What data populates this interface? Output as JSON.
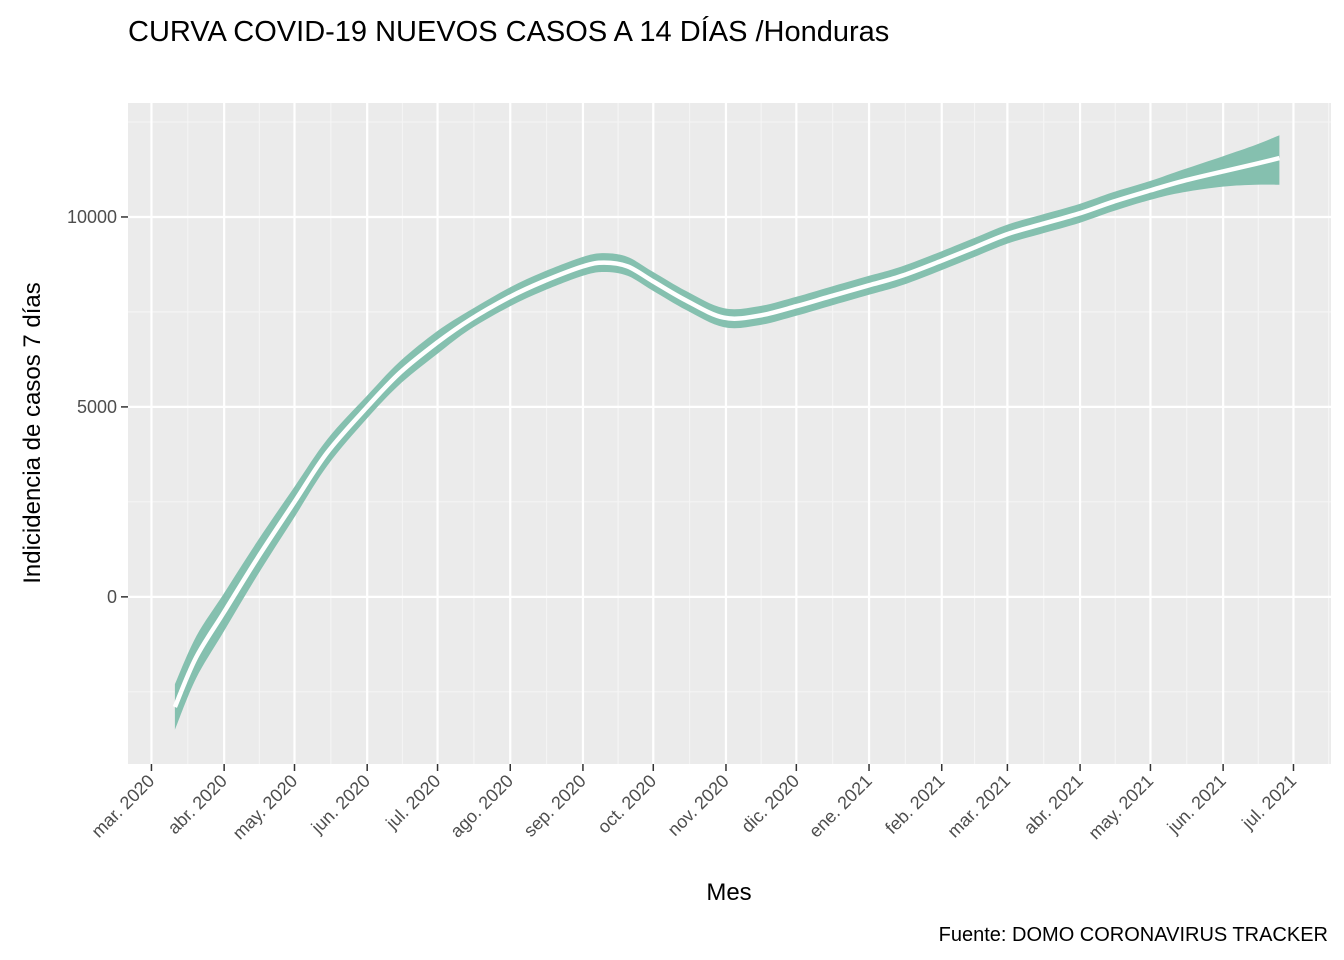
{
  "chart_data": {
    "type": "line",
    "title": "CURVA COVID-19 NUEVOS CASOS A 14 DÍAS /Honduras",
    "xlabel": "Mes",
    "ylabel": "Indicidencia de casos 7 días",
    "caption": "Fuente: DOMO CORONAVIRUS TRACKER",
    "x_ticks": [
      "mar. 2020",
      "abr. 2020",
      "may. 2020",
      "jun. 2020",
      "jul. 2020",
      "ago. 2020",
      "sep. 2020",
      "oct. 2020",
      "nov. 2020",
      "dic. 2020",
      "ene. 2021",
      "feb. 2021",
      "mar. 2021",
      "abr. 2021",
      "may. 2021",
      "jun. 2021",
      "jul. 2021"
    ],
    "y_ticks": [
      0,
      5000,
      10000
    ],
    "xlim": [
      "2020-02-20",
      "2021-07-17"
    ],
    "ylim": [
      -4400,
      13000
    ],
    "grid": true,
    "series": [
      {
        "color": "#ffffff",
        "ribbon_color": "#85c0af",
        "x": [
          "2020-03-11",
          "2020-03-20",
          "2020-04-01",
          "2020-04-15",
          "2020-05-01",
          "2020-05-15",
          "2020-06-01",
          "2020-06-15",
          "2020-07-01",
          "2020-07-15",
          "2020-08-01",
          "2020-08-15",
          "2020-09-01",
          "2020-09-10",
          "2020-09-20",
          "2020-10-01",
          "2020-10-15",
          "2020-10-31",
          "2020-11-15",
          "2020-12-01",
          "2020-12-15",
          "2021-01-01",
          "2021-01-15",
          "2021-02-01",
          "2021-02-15",
          "2021-03-01",
          "2021-03-15",
          "2021-04-01",
          "2021-04-15",
          "2021-05-01",
          "2021-05-15",
          "2021-06-01",
          "2021-06-15",
          "2021-06-25"
        ],
        "values": [
          -2900,
          -1600,
          -400,
          1000,
          2500,
          3800,
          5000,
          5900,
          6700,
          7300,
          7900,
          8300,
          8700,
          8800,
          8700,
          8300,
          7800,
          7350,
          7400,
          7650,
          7900,
          8200,
          8450,
          8850,
          9200,
          9550,
          9800,
          10100,
          10400,
          10700,
          10950,
          11200,
          11400,
          11550
        ],
        "lower": [
          -3500,
          -2150,
          -900,
          550,
          2100,
          3450,
          4700,
          5600,
          6400,
          7050,
          7650,
          8050,
          8450,
          8550,
          8450,
          8050,
          7550,
          7100,
          7150,
          7400,
          7650,
          7950,
          8200,
          8600,
          8950,
          9300,
          9550,
          9850,
          10150,
          10450,
          10650,
          10800,
          10850,
          10850
        ],
        "upper": [
          -2300,
          -1050,
          100,
          1450,
          2900,
          4150,
          5300,
          6200,
          7000,
          7550,
          8150,
          8550,
          8950,
          9050,
          8950,
          8550,
          8050,
          7600,
          7650,
          7900,
          8150,
          8450,
          8700,
          9100,
          9450,
          9800,
          10050,
          10350,
          10650,
          10950,
          11250,
          11600,
          11900,
          12150
        ]
      }
    ]
  }
}
